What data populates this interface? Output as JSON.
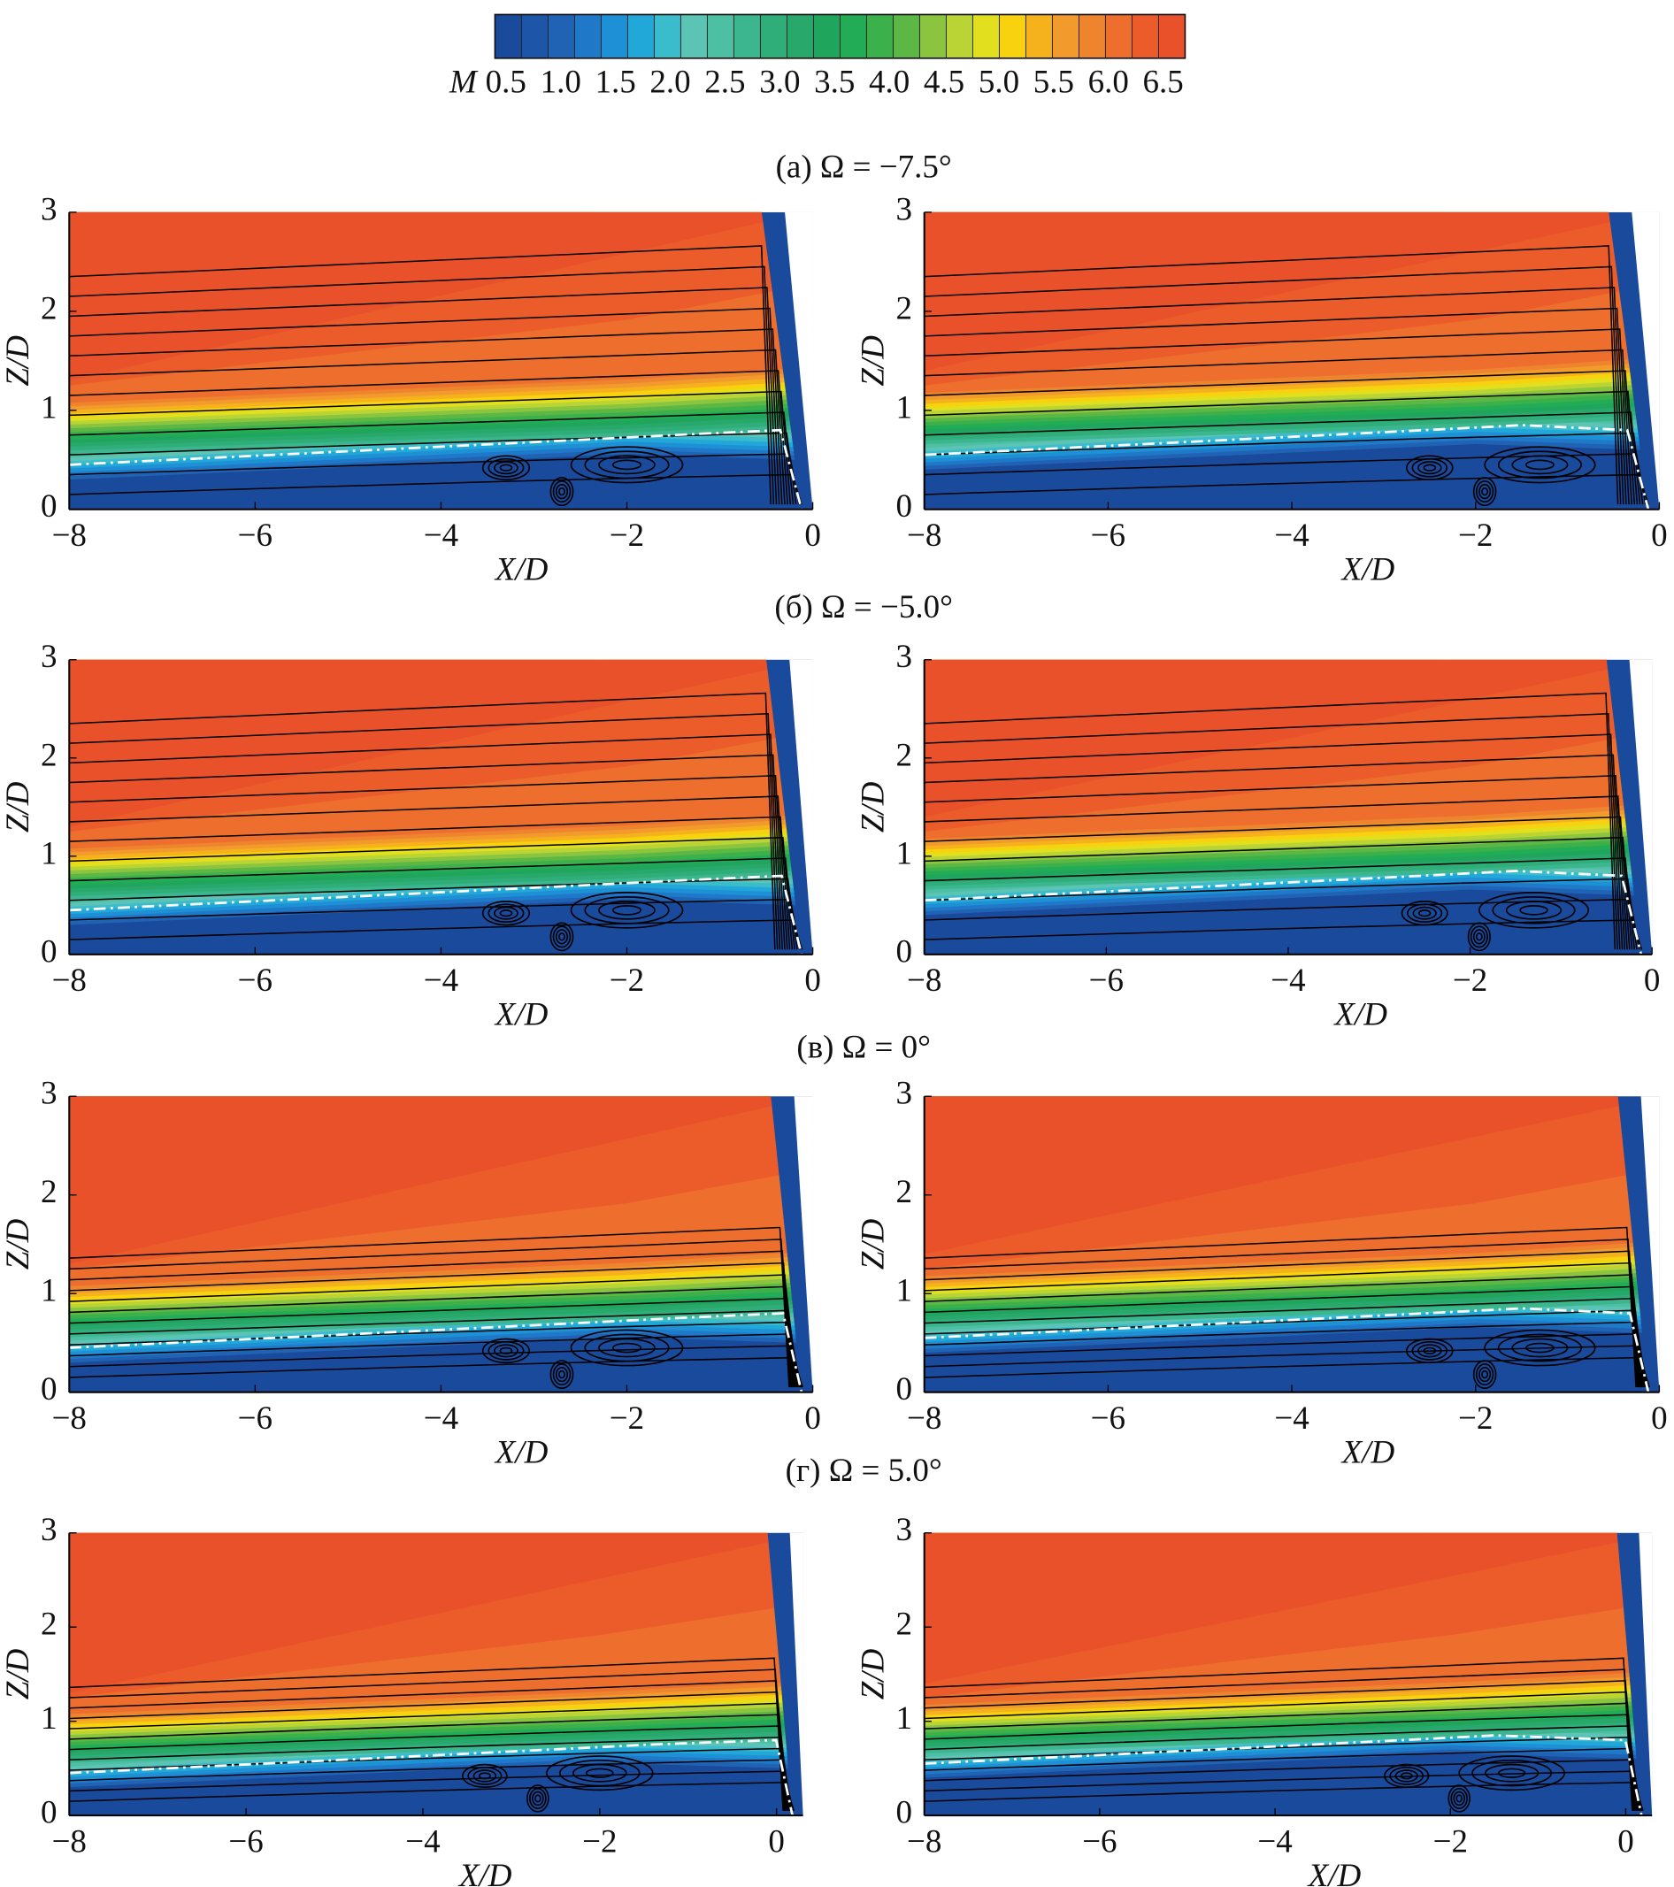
{
  "chart_data": {
    "type": "contour",
    "colorbar_label": "M",
    "clim": [
      0.4,
      6.7
    ],
    "cticks": [
      0.5,
      {
        "value": 1,
        "label": "1.0"
      },
      1.5,
      {
        "value": 2,
        "label": "2.0"
      },
      2.5,
      {
        "value": 3,
        "label": "3.0"
      },
      3.5,
      {
        "value": 4,
        "label": "4.0"
      },
      4.5,
      {
        "value": 5,
        "label": "5.0"
      },
      5.5,
      {
        "value": 6,
        "label": "6.0"
      },
      6.5
    ],
    "colors": [
      "#1a4a9c",
      "#1d56a8",
      "#2063b4",
      "#1f78c8",
      "#1e90d5",
      "#22a8d8",
      "#3bbccc",
      "#5cc4b4",
      "#4dbfa3",
      "#3cb68f",
      "#2fae7a",
      "#28a86b",
      "#1fa65c",
      "#22ac55",
      "#3cb04a",
      "#5db745",
      "#8bc43f",
      "#b9d434",
      "#e2e01e",
      "#f8d20e",
      "#f6b21c",
      "#f39a2d",
      "#ef842f",
      "#ee6e2e",
      "#ec5c2b",
      "#e9512a"
    ],
    "xlabel": "X/D",
    "ylabel": "Z/D",
    "ylim": [
      0,
      3
    ],
    "yticks": [
      0,
      1,
      2,
      3
    ],
    "xticks": [
      {
        "value": -8,
        "label": "−8"
      },
      {
        "value": -6,
        "label": "−6"
      },
      {
        "value": -4,
        "label": "−4"
      },
      {
        "value": -2,
        "label": "−2"
      },
      0
    ],
    "rows": [
      {
        "caption": "(а) Ω = −7.5°",
        "xlim": [
          -8,
          0
        ]
      },
      {
        "caption": "(б) Ω = −5.0°",
        "xlim": [
          -8,
          0
        ]
      },
      {
        "caption": "(в) Ω = 0°",
        "xlim": [
          -8,
          0
        ]
      },
      {
        "caption": "(г) Ω = 5.0°",
        "xlim": [
          -8,
          0.3
        ]
      }
    ]
  }
}
